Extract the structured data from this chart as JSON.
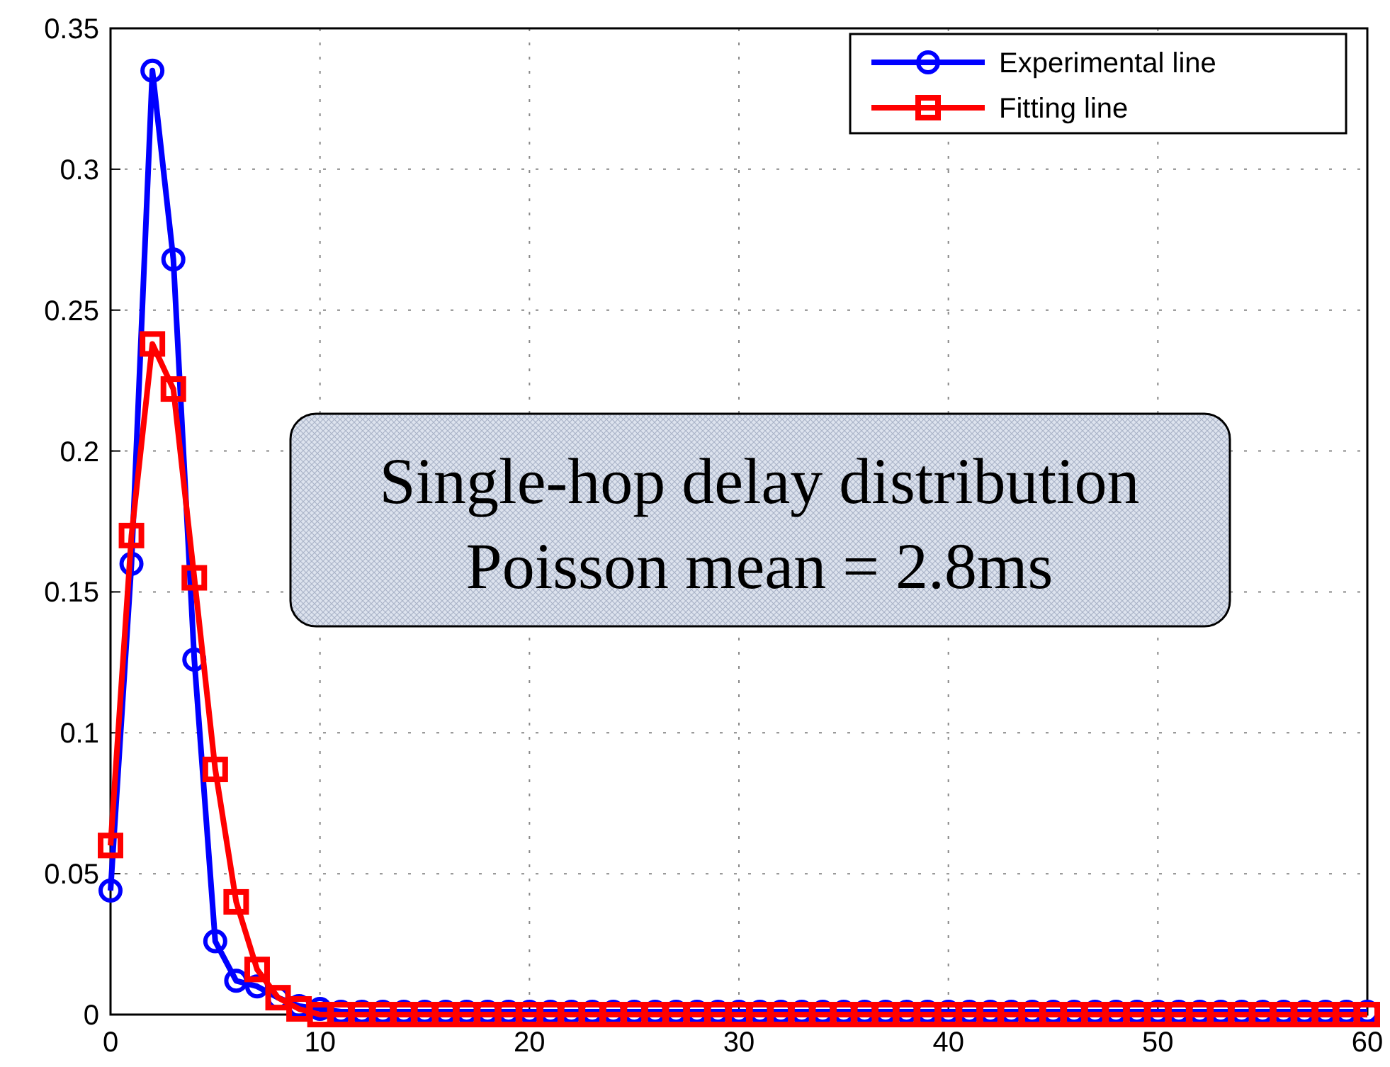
{
  "chart_data": {
    "type": "line",
    "x": [
      0,
      1,
      2,
      3,
      4,
      5,
      6,
      7,
      8,
      9,
      10,
      11,
      12,
      13,
      14,
      15,
      16,
      17,
      18,
      19,
      20,
      21,
      22,
      23,
      24,
      25,
      26,
      27,
      28,
      29,
      30,
      31,
      32,
      33,
      34,
      35,
      36,
      37,
      38,
      39,
      40,
      41,
      42,
      43,
      44,
      45,
      46,
      47,
      48,
      49,
      50,
      51,
      52,
      53,
      54,
      55,
      56,
      57,
      58,
      59,
      60
    ],
    "series": [
      {
        "name": "Experimental line",
        "color": "#0000ff",
        "marker": "circle",
        "values": [
          0.044,
          0.16,
          0.335,
          0.268,
          0.126,
          0.026,
          0.012,
          0.01,
          0.006,
          0.003,
          0.002,
          0.001,
          0.001,
          0.001,
          0.001,
          0.001,
          0.001,
          0.001,
          0.001,
          0.001,
          0.001,
          0.001,
          0.001,
          0.001,
          0.001,
          0.001,
          0.001,
          0.001,
          0.001,
          0.001,
          0.001,
          0.001,
          0.001,
          0.001,
          0.001,
          0.001,
          0.001,
          0.001,
          0.001,
          0.001,
          0.001,
          0.001,
          0.001,
          0.001,
          0.001,
          0.001,
          0.001,
          0.001,
          0.001,
          0.001,
          0.001,
          0.001,
          0.001,
          0.001,
          0.001,
          0.001,
          0.001,
          0.001,
          0.001,
          0.001,
          0.001
        ]
      },
      {
        "name": "Fitting line",
        "color": "#ff0000",
        "marker": "square",
        "values": [
          0.06,
          0.17,
          0.238,
          0.222,
          0.155,
          0.087,
          0.04,
          0.016,
          0.006,
          0.002,
          0,
          0,
          0,
          0,
          0,
          0,
          0,
          0,
          0,
          0,
          0,
          0,
          0,
          0,
          0,
          0,
          0,
          0,
          0,
          0,
          0,
          0,
          0,
          0,
          0,
          0,
          0,
          0,
          0,
          0,
          0,
          0,
          0,
          0,
          0,
          0,
          0,
          0,
          0,
          0,
          0,
          0,
          0,
          0,
          0,
          0,
          0,
          0,
          0,
          0,
          0
        ]
      }
    ],
    "xlim": [
      0,
      60
    ],
    "xticks": [
      0,
      10,
      20,
      30,
      40,
      50,
      60
    ],
    "ylim": [
      0,
      0.35
    ],
    "yticks": [
      0,
      0.05,
      0.1,
      0.15,
      0.2,
      0.25,
      0.3,
      0.35
    ],
    "grid": true,
    "legend": "top right",
    "line_style": "solid",
    "annotations": [
      "Single-hop delay distribution",
      "Poisson mean = 2.8ms"
    ]
  }
}
